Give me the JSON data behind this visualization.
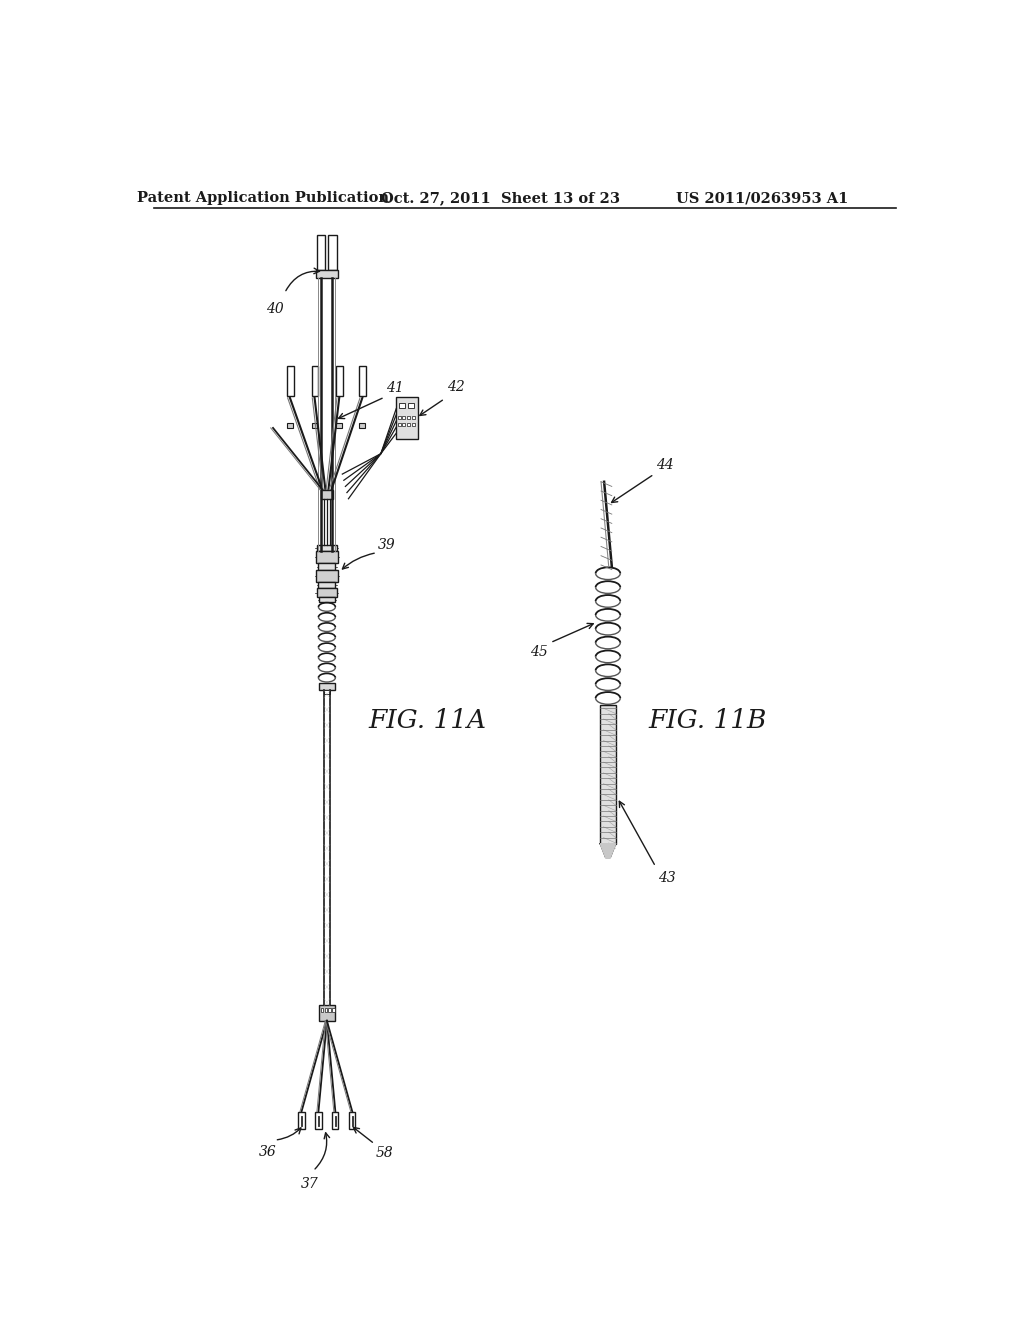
{
  "title_left": "Patent Application Publication",
  "title_center": "Oct. 27, 2011  Sheet 13 of 23",
  "title_right": "US 2011/0263953 A1",
  "fig_label_11A": "FIG. 11A",
  "fig_label_11B": "FIG. 11B",
  "label_40": "40",
  "label_41": "41",
  "label_42": "42",
  "label_39": "39",
  "label_36": "36",
  "label_37": "37",
  "label_58": "58",
  "label_43": "43",
  "label_44": "44",
  "label_45": "45",
  "bg_color": "#ffffff",
  "line_color": "#1a1a1a",
  "gray1": "#e8e8e8",
  "gray2": "#cccccc",
  "gray3": "#aaaaaa"
}
